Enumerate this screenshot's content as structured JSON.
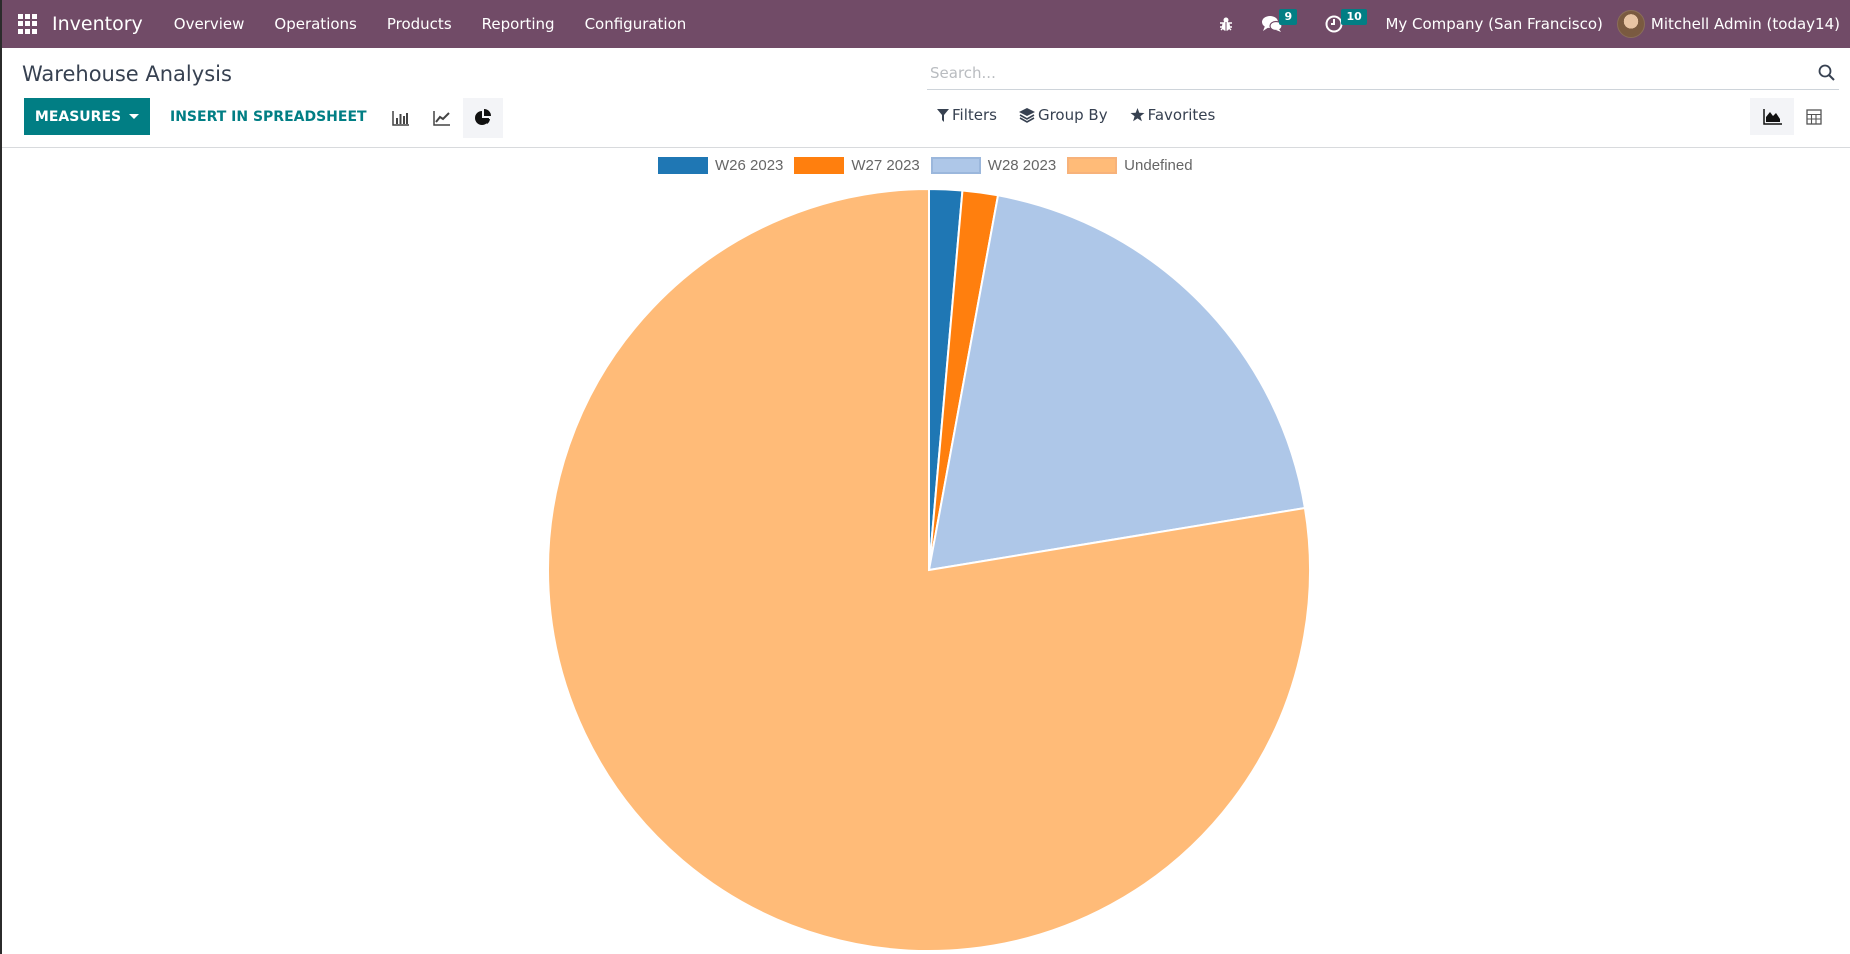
{
  "navbar": {
    "app_name": "Inventory",
    "menu": [
      "Overview",
      "Operations",
      "Products",
      "Reporting",
      "Configuration"
    ],
    "messages_count": "9",
    "activities_count": "10",
    "company": "My Company (San Francisco)",
    "user": "Mitchell Admin (today14)",
    "icons": [
      "apps-grid-icon",
      "bug-icon",
      "chat-icon",
      "clock-icon",
      "avatar"
    ]
  },
  "control_panel": {
    "title": "Warehouse Analysis",
    "measures_label": "MEASURES",
    "insert_label": "INSERT IN SPREADSHEET",
    "chart_types": [
      "bar-chart-icon",
      "line-chart-icon",
      "pie-chart-icon"
    ],
    "active_chart_type": "pie",
    "search_placeholder": "Search...",
    "filters_label": "Filters",
    "groupby_label": "Group By",
    "favorites_label": "Favorites",
    "views": [
      "graph-view-icon",
      "pivot-view-icon"
    ],
    "active_view": "graph"
  },
  "colors": {
    "navbar": "#714b67",
    "primary": "#017e84"
  },
  "chart_data": {
    "type": "pie",
    "title": "",
    "categories": [
      "W26 2023",
      "W27 2023",
      "W28 2023",
      "Undefined"
    ],
    "values": [
      1.4,
      1.5,
      19.5,
      77.6
    ],
    "unit": "percent of total (estimated from slice angles)",
    "colors": [
      "#1f77b4",
      "#ff7f0e",
      "#aec7e8",
      "#ffbb78"
    ],
    "legend_position": "top",
    "start_angle": "12 o'clock, clockwise"
  },
  "legend": {
    "items": [
      {
        "label": "W26 2023"
      },
      {
        "label": "W27 2023"
      },
      {
        "label": "W28 2023"
      },
      {
        "label": "Undefined"
      }
    ]
  }
}
